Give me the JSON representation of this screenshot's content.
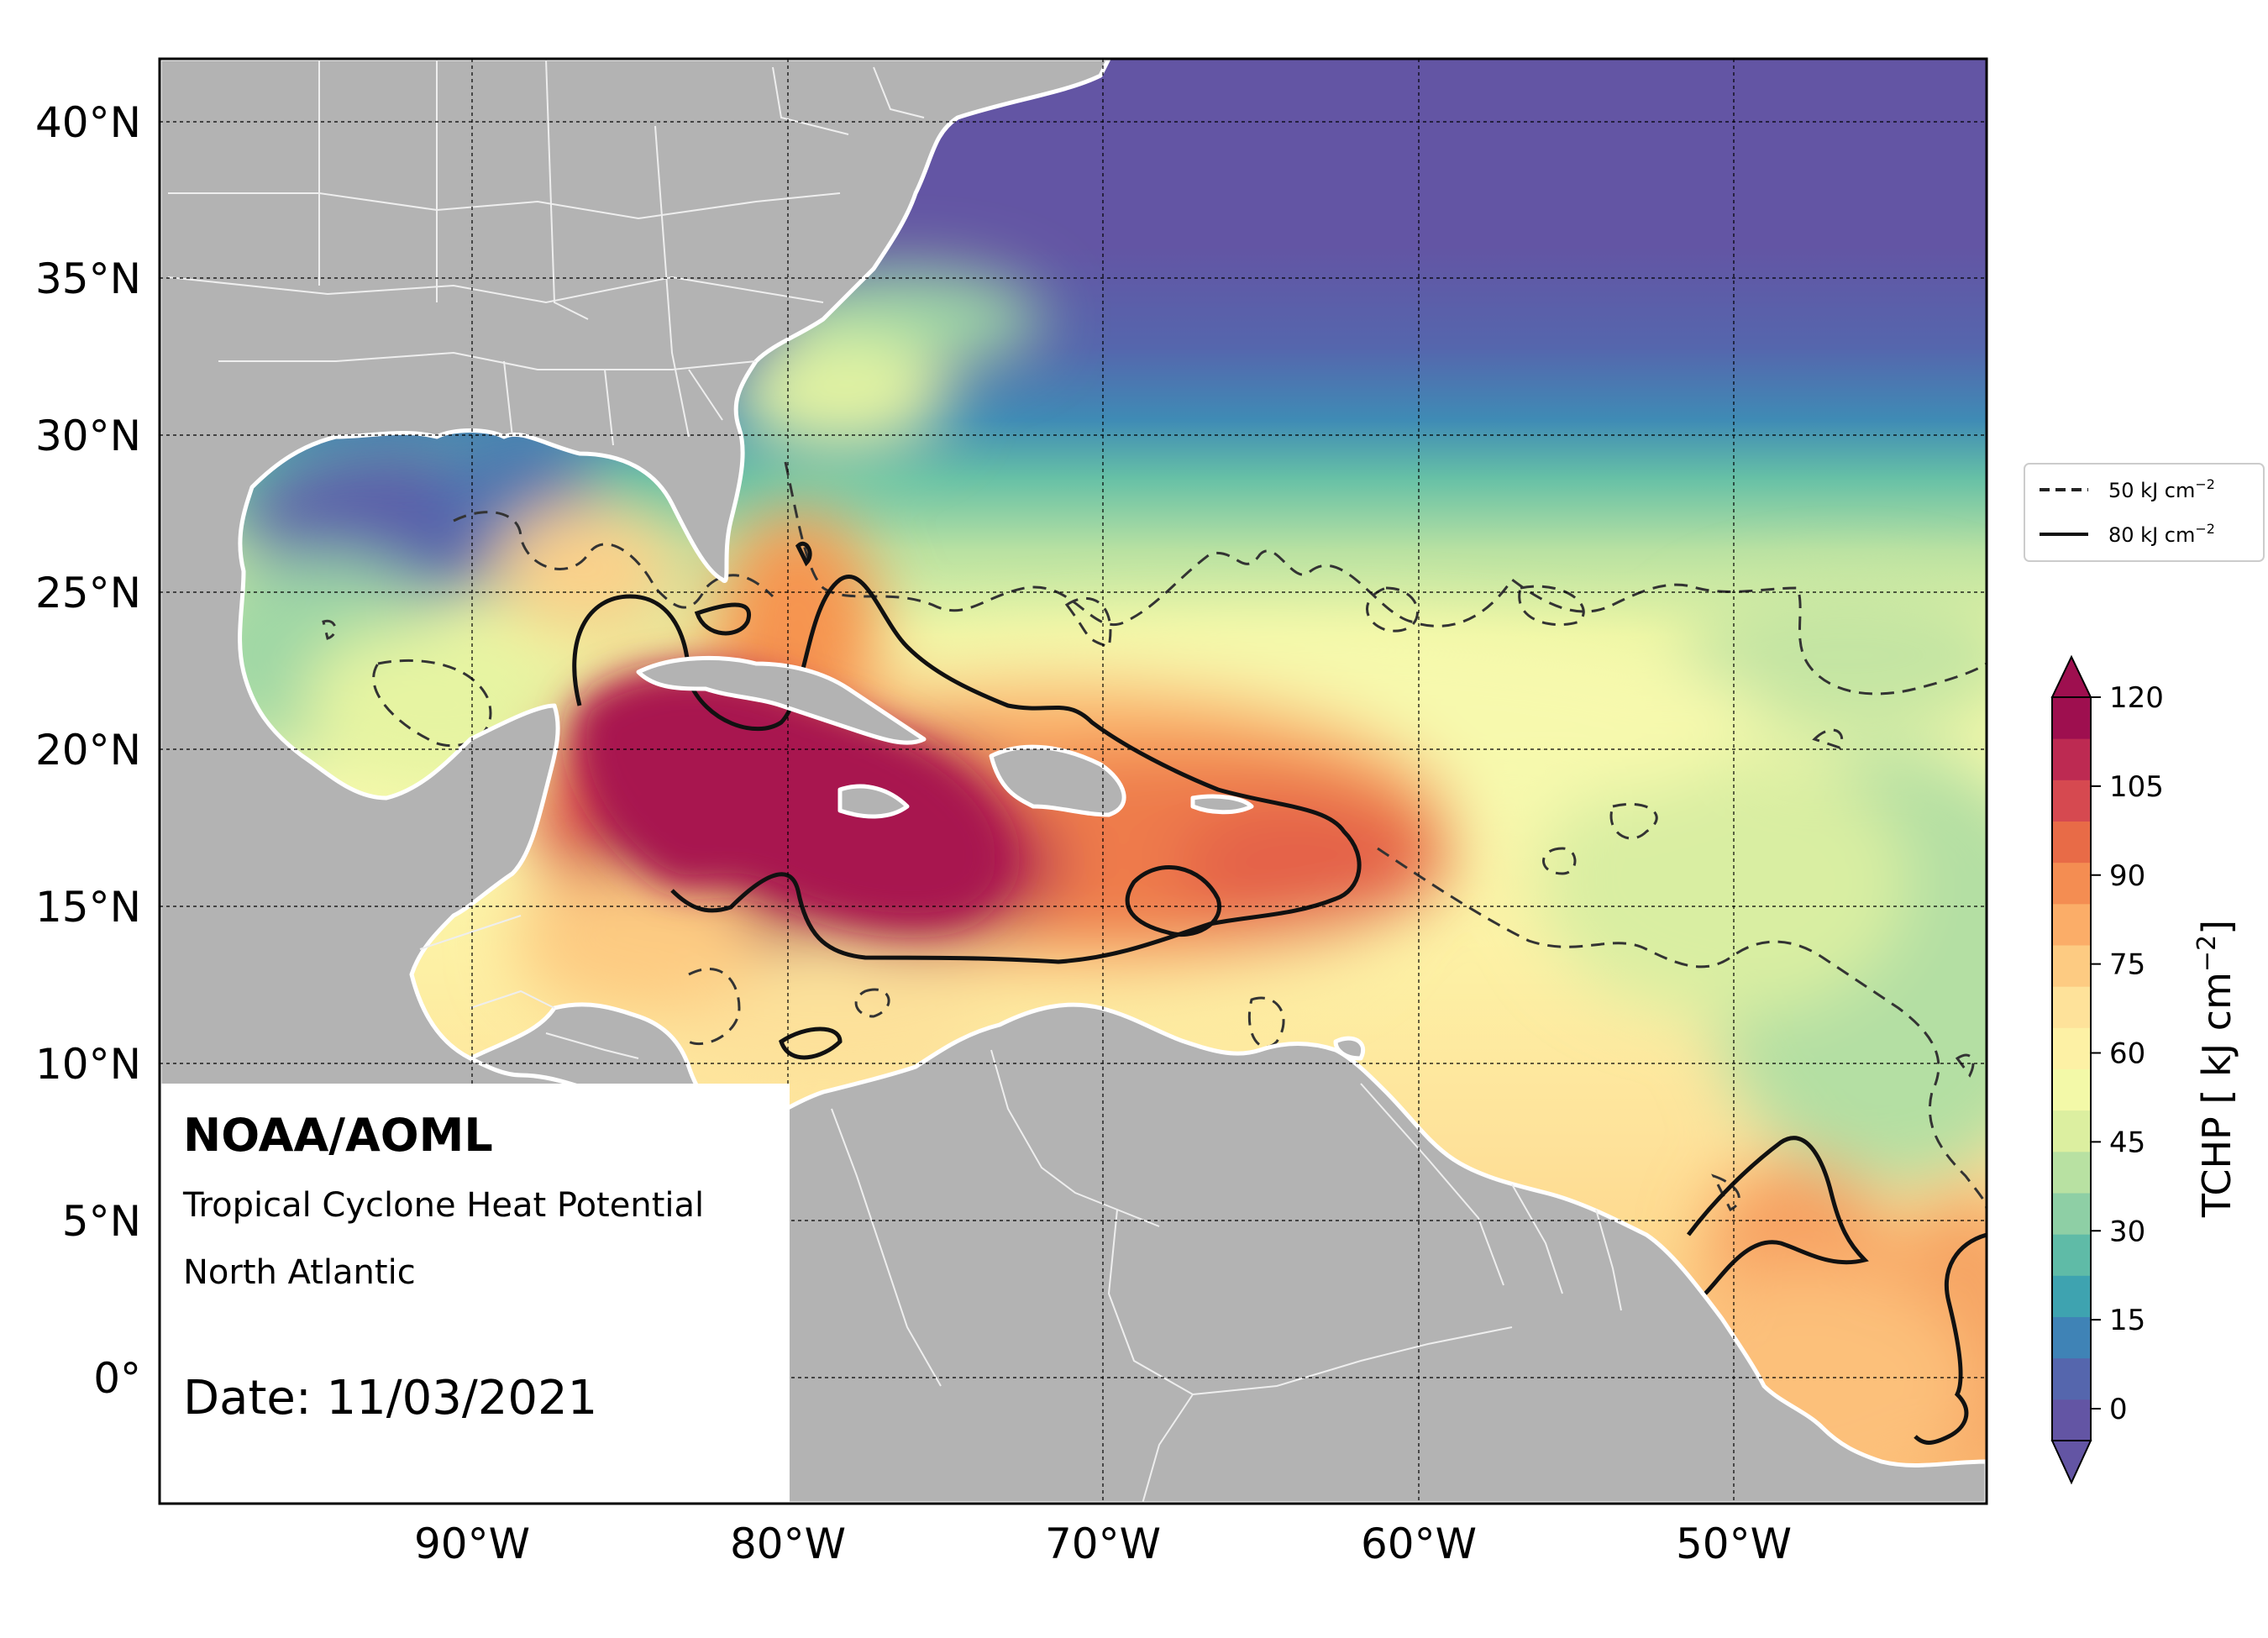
{
  "info_box": {
    "org": "NOAA/AOML",
    "product": "Tropical Cyclone Heat Potential",
    "region": "North Atlantic",
    "date": "Date: 11/03/2021"
  },
  "axes": {
    "lon_ticks": [
      "90°W",
      "80°W",
      "70°W",
      "60°W",
      "50°W"
    ],
    "lat_ticks": [
      "40°N",
      "35°N",
      "30°N",
      "25°N",
      "20°N",
      "15°N",
      "10°N",
      "5°N",
      "0°"
    ]
  },
  "legend": {
    "items": [
      {
        "style": "dashed",
        "label": "50 kJ cm",
        "sup": "−2"
      },
      {
        "style": "solid",
        "label": "80 kJ cm",
        "sup": "−2"
      }
    ]
  },
  "colorbar": {
    "label": "TCHP [ kJ cm",
    "label_sup": "−2",
    "label_end": "]",
    "ticks": [
      "120",
      "105",
      "90",
      "75",
      "60",
      "45",
      "30",
      "15",
      "0"
    ],
    "colors": [
      "#6355a4",
      "#5566ad",
      "#3f83b6",
      "#3ea3b0",
      "#5fbba7",
      "#8ecfa5",
      "#b8e1a2",
      "#dcefa0",
      "#f3f9a8",
      "#fdf1a5",
      "#fee29a",
      "#fdcb82",
      "#fbad68",
      "#f48d52",
      "#e86b47",
      "#d64950",
      "#bd2a52",
      "#9e0f4f"
    ],
    "min": 0,
    "max": 120
  },
  "colors": {
    "land": "#b3b3b3",
    "border": "#ffffff",
    "ocean_cold": "#6355a4",
    "ocean_hot": "#b11c51"
  }
}
